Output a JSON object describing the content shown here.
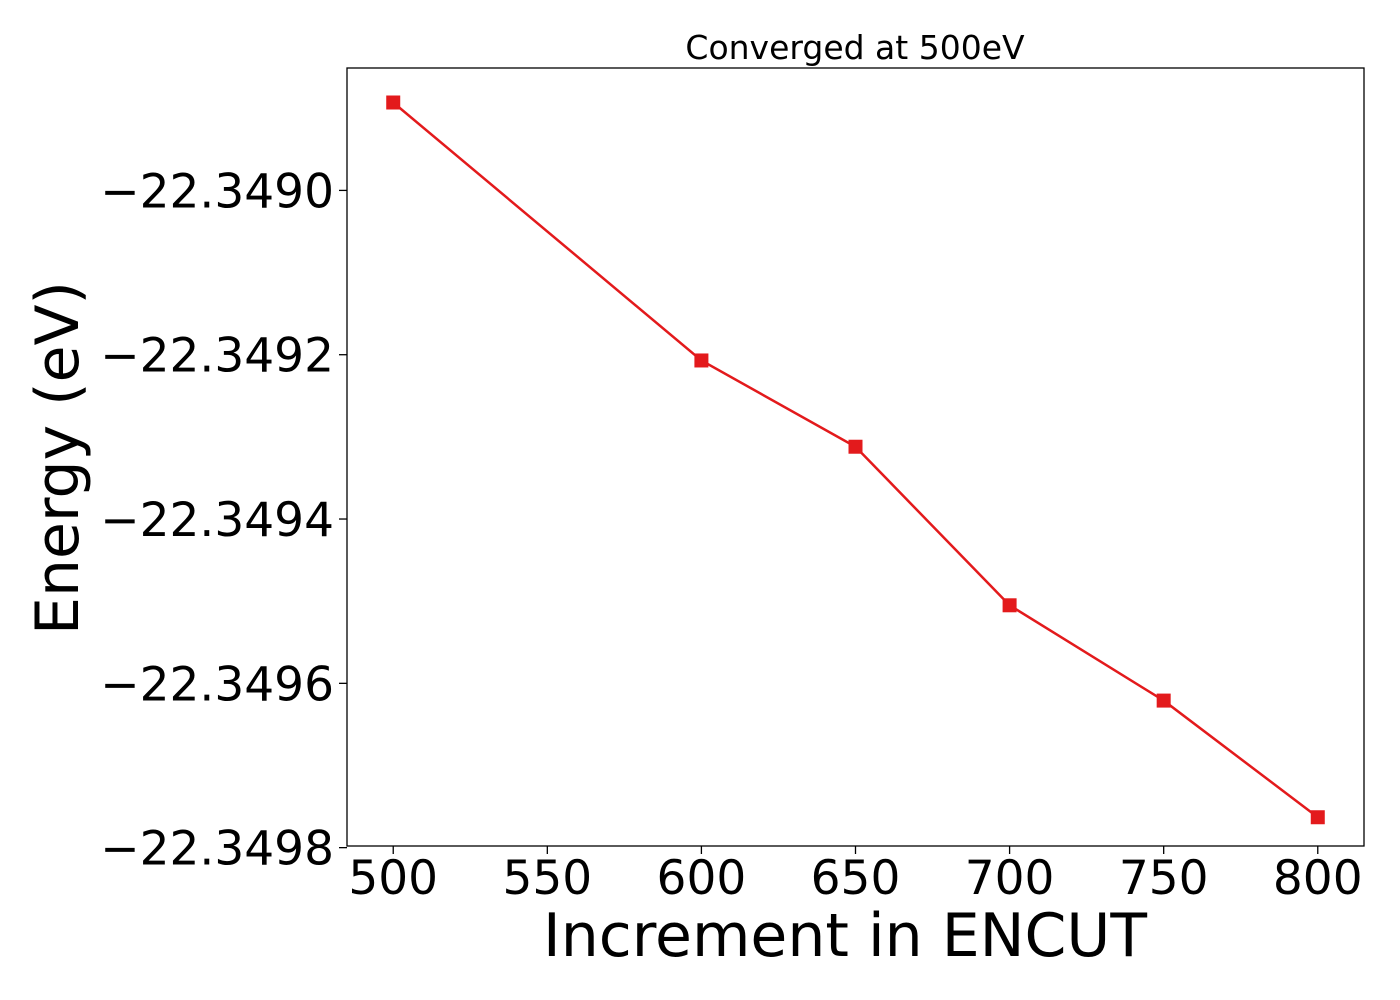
{
  "chart_data": {
    "type": "line",
    "title": "Converged at 500eV",
    "xlabel": "Increment in ENCUT",
    "ylabel": "Energy (eV)",
    "x": [
      500,
      600,
      650,
      700,
      750,
      800
    ],
    "series": [
      {
        "values": [
          -22.348893,
          -22.349207,
          -22.349312,
          -22.349505,
          -22.349621,
          -22.349763
        ],
        "color": "#e31a1c",
        "marker": "square"
      }
    ],
    "xlim": [
      485,
      815
    ],
    "ylim": [
      -22.349798,
      -22.348851
    ],
    "xticks": [
      500,
      550,
      600,
      650,
      700,
      750,
      800
    ],
    "xtick_labels": [
      "500",
      "550",
      "600",
      "650",
      "700",
      "750",
      "800"
    ],
    "yticks": [
      -22.349,
      -22.3492,
      -22.3494,
      -22.3496,
      -22.3498
    ],
    "ytick_labels": [
      "−22.3490",
      "−22.3492",
      "−22.3494",
      "−22.3496",
      "−22.3498"
    ],
    "grid": false,
    "legend": "none"
  }
}
